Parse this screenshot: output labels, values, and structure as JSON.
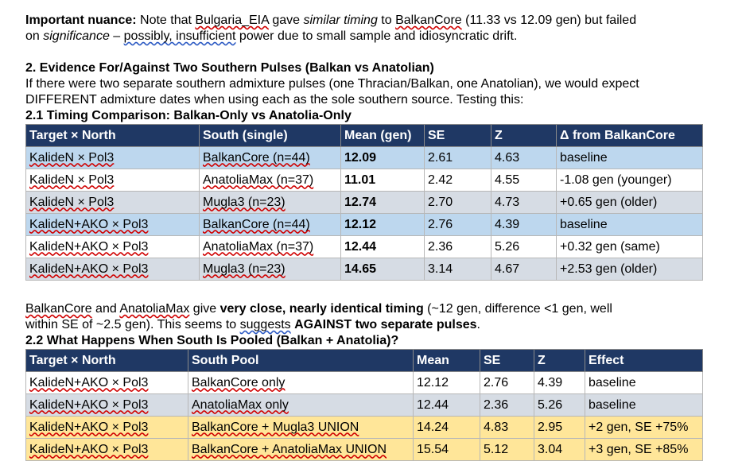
{
  "nuance": {
    "lead": "Important nuance:",
    "t1": " Note that ",
    "bulgaria": "Bulgaria_EIA",
    "t2": " gave ",
    "similar_timing": "similar timing",
    "t3": " to ",
    "balkancore": "BalkanCore",
    "t4": " (11.33 vs 12.09 gen) but failed",
    "t5": "on ",
    "significance": "significance",
    "t6": " – ",
    "possibly": "possibly,  insufficient",
    "t7": " power due to small sample and idiosyncratic drift."
  },
  "section2": {
    "heading": "2. Evidence For/Against Two Southern Pulses (Balkan vs Anatolian)",
    "line1": "If there were two separate southern admixture pulses (one Thracian/Balkan, one Anatolian), we would expect",
    "line2": "DIFFERENT admixture dates when using each as the sole southern source. Testing this:"
  },
  "section21": {
    "heading": "2.1 Timing Comparison: Balkan-Only vs Anatolia-Only",
    "headers": [
      "Target × North",
      "South (single)",
      "Mean (gen)",
      "SE",
      "Z",
      "Δ from BalkanCore"
    ],
    "rows": [
      {
        "style": "blue",
        "cells": [
          "KalideN × Pol3",
          "BalkanCore (n=44)",
          "12.09",
          "2.61",
          "4.63",
          "baseline"
        ]
      },
      {
        "style": "white",
        "cells": [
          "KalideN × Pol3",
          "AnatoliaMax (n=37)",
          "11.01",
          "2.42",
          "4.55",
          "-1.08 gen (younger)"
        ]
      },
      {
        "style": "grey",
        "cells": [
          "KalideN × Pol3",
          "Mugla3 (n=23)",
          "12.74",
          "2.70",
          "4.73",
          "+0.65 gen (older)"
        ]
      },
      {
        "style": "blue",
        "cells": [
          "KalideN+AKO × Pol3",
          "BalkanCore (n=44)",
          "12.12",
          "2.76",
          "4.39",
          "baseline"
        ]
      },
      {
        "style": "white",
        "cells": [
          "KalideN+AKO × Pol3",
          "AnatoliaMax (n=37)",
          "12.44",
          "2.36",
          "5.26",
          "+0.32 gen (same)"
        ]
      },
      {
        "style": "grey",
        "cells": [
          "KalideN+AKO × Pol3",
          "Mugla3 (n=23)",
          "14.65",
          "3.14",
          "4.67",
          "+2.53 gen (older)"
        ]
      }
    ]
  },
  "conclusion": {
    "balkancore": "BalkanCore",
    "t1": " and ",
    "anatoliamax": "AnatoliaMax",
    "t2": " give ",
    "close": "very close, nearly identical timing",
    "t3": " (~12 gen, difference <1 gen, well",
    "t4": "within SE of ~2.5 gen). This seems to ",
    "suggests": "suggests",
    "t5": " ",
    "against": "AGAINST two separate pulses",
    "t6": "."
  },
  "section22": {
    "heading": "2.2 What Happens When South Is Pooled (Balkan + Anatolia)?",
    "headers": [
      "Target × North",
      "South Pool",
      "Mean",
      "SE",
      "Z",
      "Effect"
    ],
    "rows": [
      {
        "style": "white",
        "cells": [
          "KalideN+AKO × Pol3",
          "BalkanCore only",
          "12.12",
          "2.76",
          "4.39",
          "baseline"
        ]
      },
      {
        "style": "grey",
        "cells": [
          "KalideN+AKO × Pol3",
          "AnatoliaMax only",
          "12.44",
          "2.36",
          "5.26",
          "baseline"
        ]
      },
      {
        "style": "yellow",
        "cells": [
          "KalideN+AKO × Pol3",
          "BalkanCore + Mugla3 UNION",
          "14.24",
          "4.83",
          "2.95",
          "+2 gen, SE +75%"
        ]
      },
      {
        "style": "yellow",
        "cells": [
          "KalideN+AKO × Pol3",
          "BalkanCore + AnatoliaMax UNION",
          "15.54",
          "5.12",
          "3.04",
          "+3 gen, SE +85%"
        ]
      }
    ]
  }
}
